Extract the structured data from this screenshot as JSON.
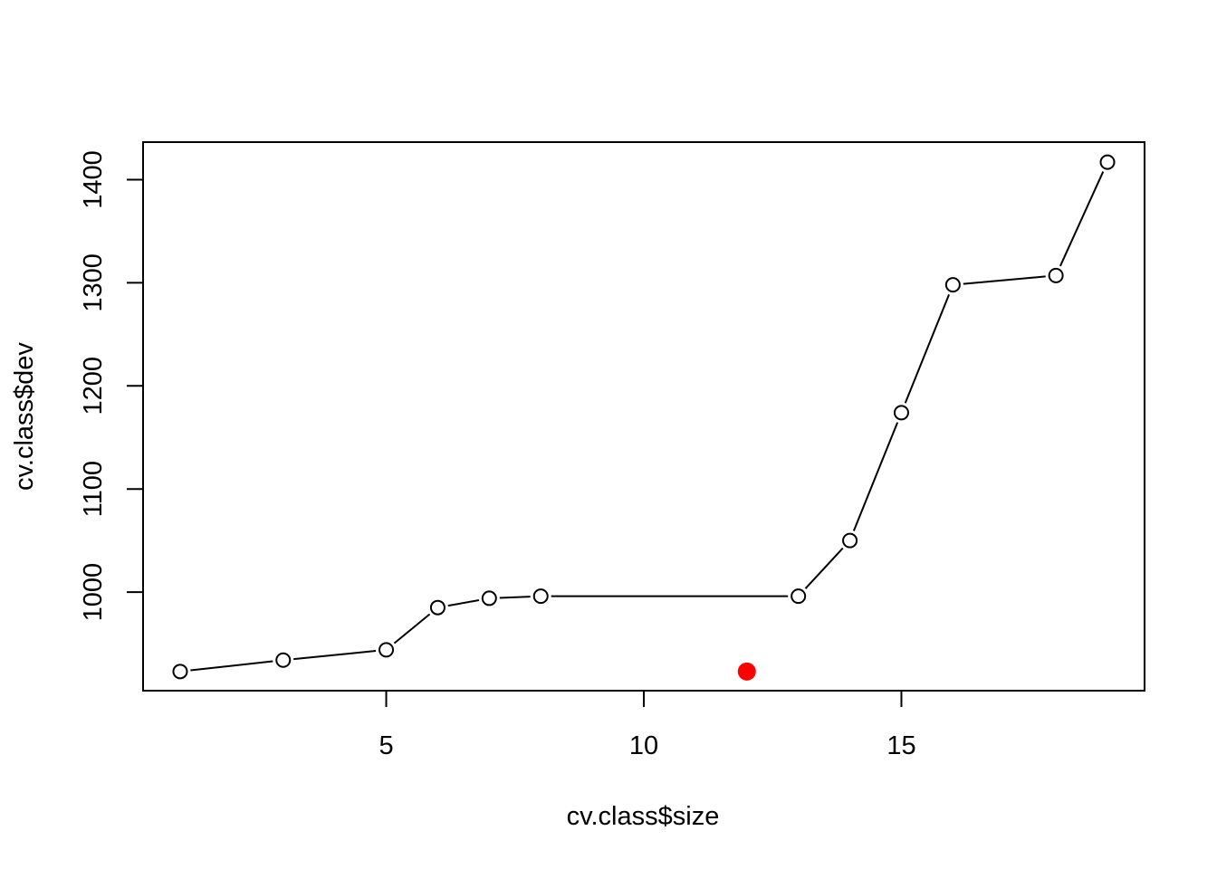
{
  "chart_data": {
    "type": "line",
    "title": "",
    "xlabel": "cv.class$size",
    "ylabel": "cv.class$dev",
    "xlim": [
      0.28,
      19.72
    ],
    "ylim": [
      904.4,
      1436.4
    ],
    "x_ticks": [
      5,
      10,
      15
    ],
    "x_tick_labels": [
      "5",
      "10",
      "15"
    ],
    "y_ticks": [
      1000,
      1100,
      1200,
      1300,
      1400
    ],
    "y_tick_labels": [
      "1000",
      "1100",
      "1200",
      "1300",
      "1400"
    ],
    "grid": false,
    "legend": "none",
    "series": [
      {
        "x": [
          1,
          3,
          5,
          6,
          7,
          8,
          13,
          14,
          15,
          16,
          18,
          19
        ],
        "y": [
          923,
          934,
          944,
          985,
          994,
          996,
          996,
          1050,
          1174,
          1298,
          1307,
          1417
        ],
        "marker": "open-circle",
        "color": "#000000"
      }
    ],
    "highlight": {
      "x": 12,
      "y": 923,
      "color": "#ff0000",
      "marker": "filled-circle"
    }
  }
}
